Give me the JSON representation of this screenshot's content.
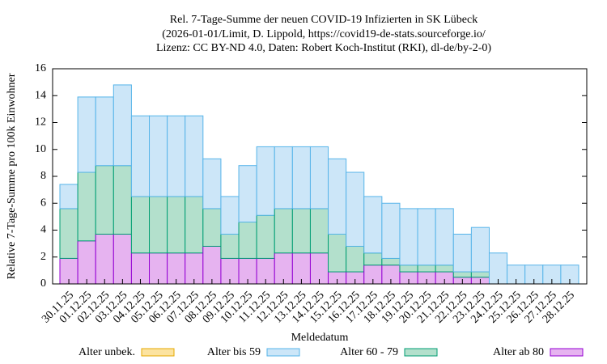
{
  "chart_data": {
    "type": "stacked-bar",
    "title": [
      "Rel. 7-Tage-Summe der neuen COVID-19 Infizierten in SK Lübeck",
      "(2026-01-01/Limit, D. Lippold, https://covid19-de-stats.sourceforge.io/",
      "Lizenz: CC BY-ND 4.0, Daten: Robert Koch-Institut (RKI), dl-de/by-2-0)"
    ],
    "xlabel": "Meldedatum",
    "ylabel": "Relative 7-Tage-Summe pro 100k Einwohner",
    "categories": [
      "30.11.25",
      "01.12.25",
      "02.12.25",
      "03.12.25",
      "04.12.25",
      "05.12.25",
      "06.12.25",
      "07.12.25",
      "08.12.25",
      "09.12.25",
      "10.12.25",
      "11.12.25",
      "12.12.25",
      "13.12.25",
      "14.12.25",
      "15.12.25",
      "16.12.25",
      "17.12.25",
      "18.12.25",
      "19.12.25",
      "20.12.25",
      "21.12.25",
      "22.12.25",
      "23.12.25",
      "24.12.25",
      "25.12.25",
      "26.12.25",
      "27.12.25",
      "28.12.25"
    ],
    "series": [
      {
        "name": "Alter ab 80",
        "color": "#e6b3f0",
        "stroke": "#9400d3",
        "values": [
          1.9,
          3.2,
          3.7,
          3.7,
          2.3,
          2.3,
          2.3,
          2.3,
          2.8,
          1.9,
          1.9,
          1.9,
          2.3,
          2.3,
          2.3,
          0.9,
          0.9,
          1.4,
          1.4,
          0.9,
          0.9,
          0.9,
          0.5,
          0.5,
          0,
          0,
          0,
          0,
          0
        ]
      },
      {
        "name": "Alter 60 - 79",
        "color": "#b3e0cc",
        "stroke": "#009e73",
        "values": [
          3.7,
          5.1,
          5.1,
          5.1,
          4.2,
          4.2,
          4.2,
          4.2,
          2.8,
          1.8,
          2.7,
          3.2,
          3.3,
          3.3,
          3.3,
          2.8,
          1.9,
          0.9,
          0.5,
          0.5,
          0.5,
          0.5,
          0.4,
          0.4,
          0,
          0,
          0,
          0,
          0
        ]
      },
      {
        "name": "Alter bis 59",
        "color": "#cce6f8",
        "stroke": "#56b4e9",
        "values": [
          1.8,
          5.6,
          5.1,
          6.0,
          6.0,
          6.0,
          6.0,
          6.0,
          3.7,
          2.8,
          4.2,
          5.1,
          4.6,
          4.6,
          4.6,
          5.6,
          5.5,
          4.2,
          4.1,
          4.2,
          4.2,
          4.2,
          2.8,
          3.3,
          2.3,
          1.4,
          1.4,
          1.4,
          1.4
        ]
      },
      {
        "name": "Alter unbek.",
        "color": "#fce3a0",
        "stroke": "#e6a800",
        "values": [
          0,
          0,
          0,
          0,
          0,
          0,
          0,
          0,
          0,
          0,
          0,
          0,
          0,
          0,
          0,
          0,
          0,
          0,
          0,
          0,
          0,
          0,
          0,
          0,
          0,
          0,
          0,
          0,
          0
        ]
      }
    ],
    "legend_order": [
      3,
      2,
      1,
      0
    ],
    "ylim": [
      0,
      16
    ],
    "yticks": [
      0,
      2,
      4,
      6,
      8,
      10,
      12,
      14,
      16
    ]
  }
}
